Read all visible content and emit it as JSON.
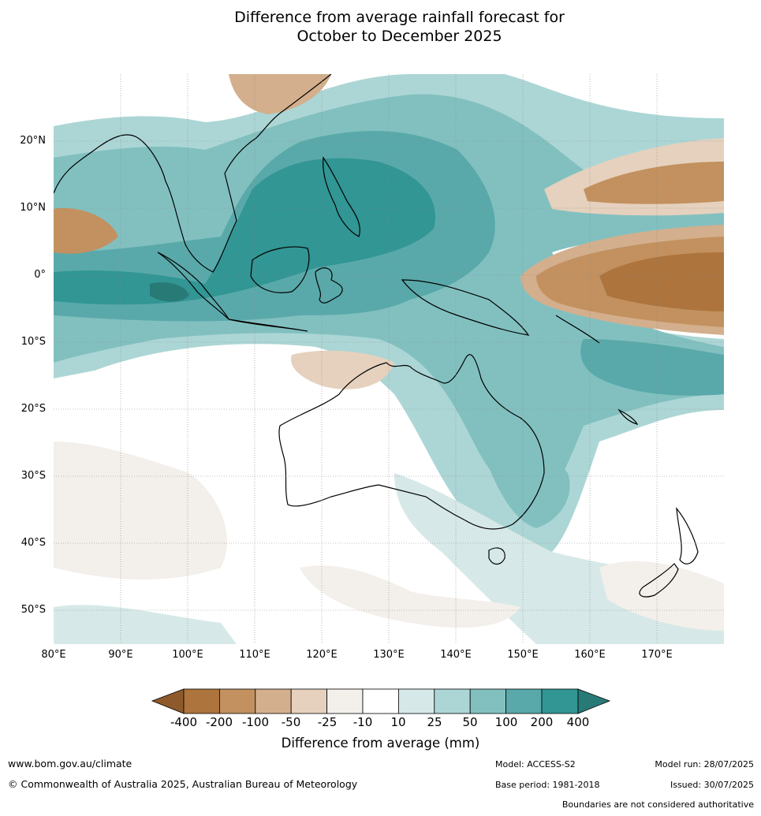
{
  "title": {
    "line1": "Difference from average rainfall forecast for",
    "line2": "October to December 2025"
  },
  "map": {
    "lat_ticks": [
      "20°N",
      "10°N",
      "0°",
      "10°S",
      "20°S",
      "30°S",
      "40°S",
      "50°S"
    ],
    "lon_ticks": [
      "80°E",
      "90°E",
      "100°E",
      "110°E",
      "120°E",
      "130°E",
      "140°E",
      "150°E",
      "160°E",
      "170°E"
    ],
    "extent": {
      "lon": [
        80,
        180
      ],
      "lat": [
        -55,
        30
      ]
    }
  },
  "legend": {
    "title": "Difference from average (mm)",
    "labels": [
      "-400",
      "-200",
      "-100",
      "-50",
      "-25",
      "-10",
      "10",
      "25",
      "50",
      "100",
      "200",
      "400"
    ],
    "colors": {
      "lt_m400": "#8f5a2b",
      "m400_m200": "#ad743d",
      "m200_m100": "#c2915f",
      "m100_m50": "#d3af8d",
      "m50_m25": "#e5d1bd",
      "m25_m10": "#f3efea",
      "m10_10": "#ffffff",
      "p10_25": "#d6e9e8",
      "p25_50": "#acd6d5",
      "p50_100": "#82c0c0",
      "p100_200": "#5aa9aa",
      "p200_400": "#319694",
      "gt_400": "#287a76"
    }
  },
  "footer": {
    "website": "www.bom.gov.au/climate",
    "copyright": "© Commonwealth of Australia 2025, Australian Bureau of Meteorology",
    "model": "Model: ACCESS-S2",
    "base_period": "Base period: 1981-2018",
    "model_run": "Model run: 28/07/2025",
    "issued": "Issued: 30/07/2025",
    "disclaimer": "Boundaries are not considered authoritative"
  }
}
